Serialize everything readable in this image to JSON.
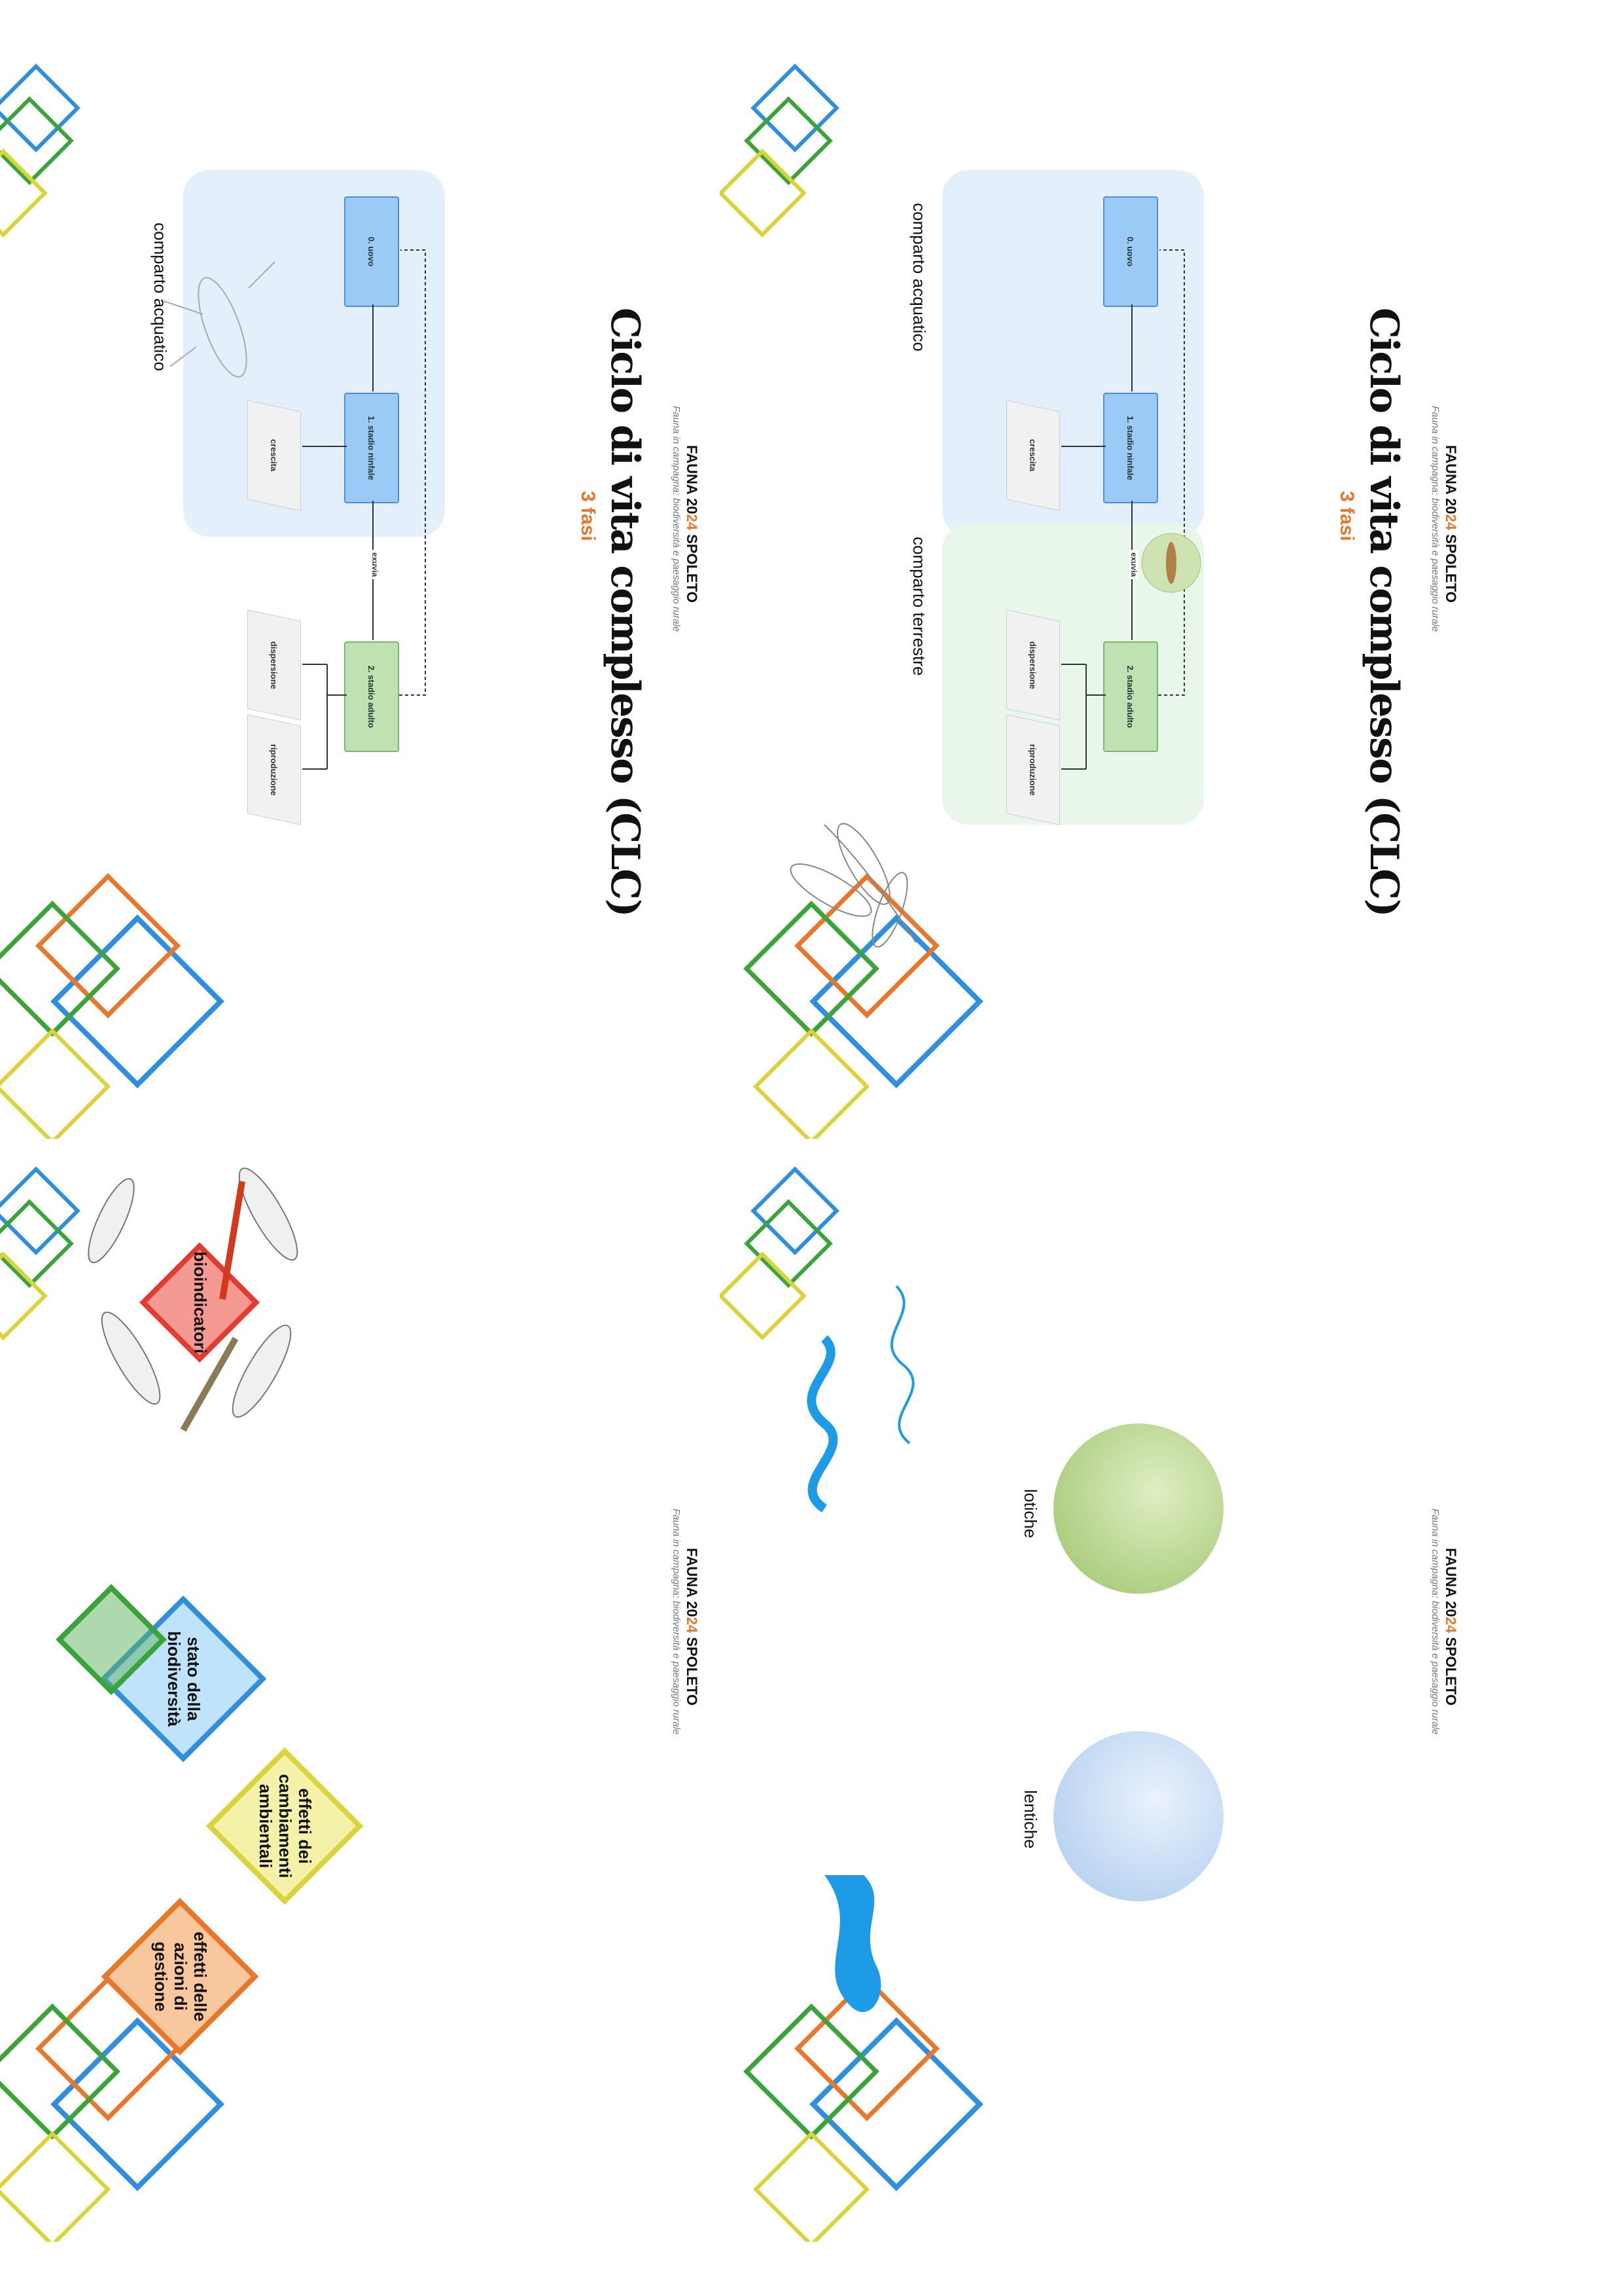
{
  "brand": {
    "prefix": "FAUNA 20",
    "highlight": "24",
    "suffix": " SPOLETO",
    "subtitle": "Fauna in campagna: biodiversità e paesaggio rurale"
  },
  "colors": {
    "orange": "#e8762b",
    "blue": "#2f8fde",
    "green": "#3aa33a",
    "yellow": "#d9d43a",
    "red": "#e53a2e"
  },
  "slide1": {
    "title": "Ciclo di vita complesso (CLC)",
    "fasi": "3 fasi",
    "stages": [
      "0. uovo",
      "1. stadio ninfale",
      "2. stadio adulto"
    ],
    "activities": [
      "crescita",
      "dispersione",
      "riproduzione"
    ],
    "transition": "exuvia",
    "zone_aquatic": "comparto acquatico",
    "zone_terrestrial": "comparto terrestre"
  },
  "slide2": {
    "title": "Ciclo di vita complesso (CLC)",
    "fasi": "3 fasi",
    "stages": [
      "0. uovo",
      "1. stadio ninfale",
      "2. stadio adulto"
    ],
    "activities": [
      "crescita",
      "dispersione",
      "riproduzione"
    ],
    "transition": "exuvia",
    "zone_aquatic": "comparto acquatico"
  },
  "slide3": {
    "lotiche": "lotiche",
    "lentiche": "lentiche"
  },
  "slide4": {
    "center": "bioindicatori",
    "items": [
      "stato della biodiversità",
      "effetti dei cambiamenti ambientali",
      "effetti delle azioni di gestione"
    ]
  },
  "icons": [
    "dragonfly-photo",
    "damselfly-photo",
    "nymph-drawing",
    "river-icon",
    "pond-icon"
  ]
}
